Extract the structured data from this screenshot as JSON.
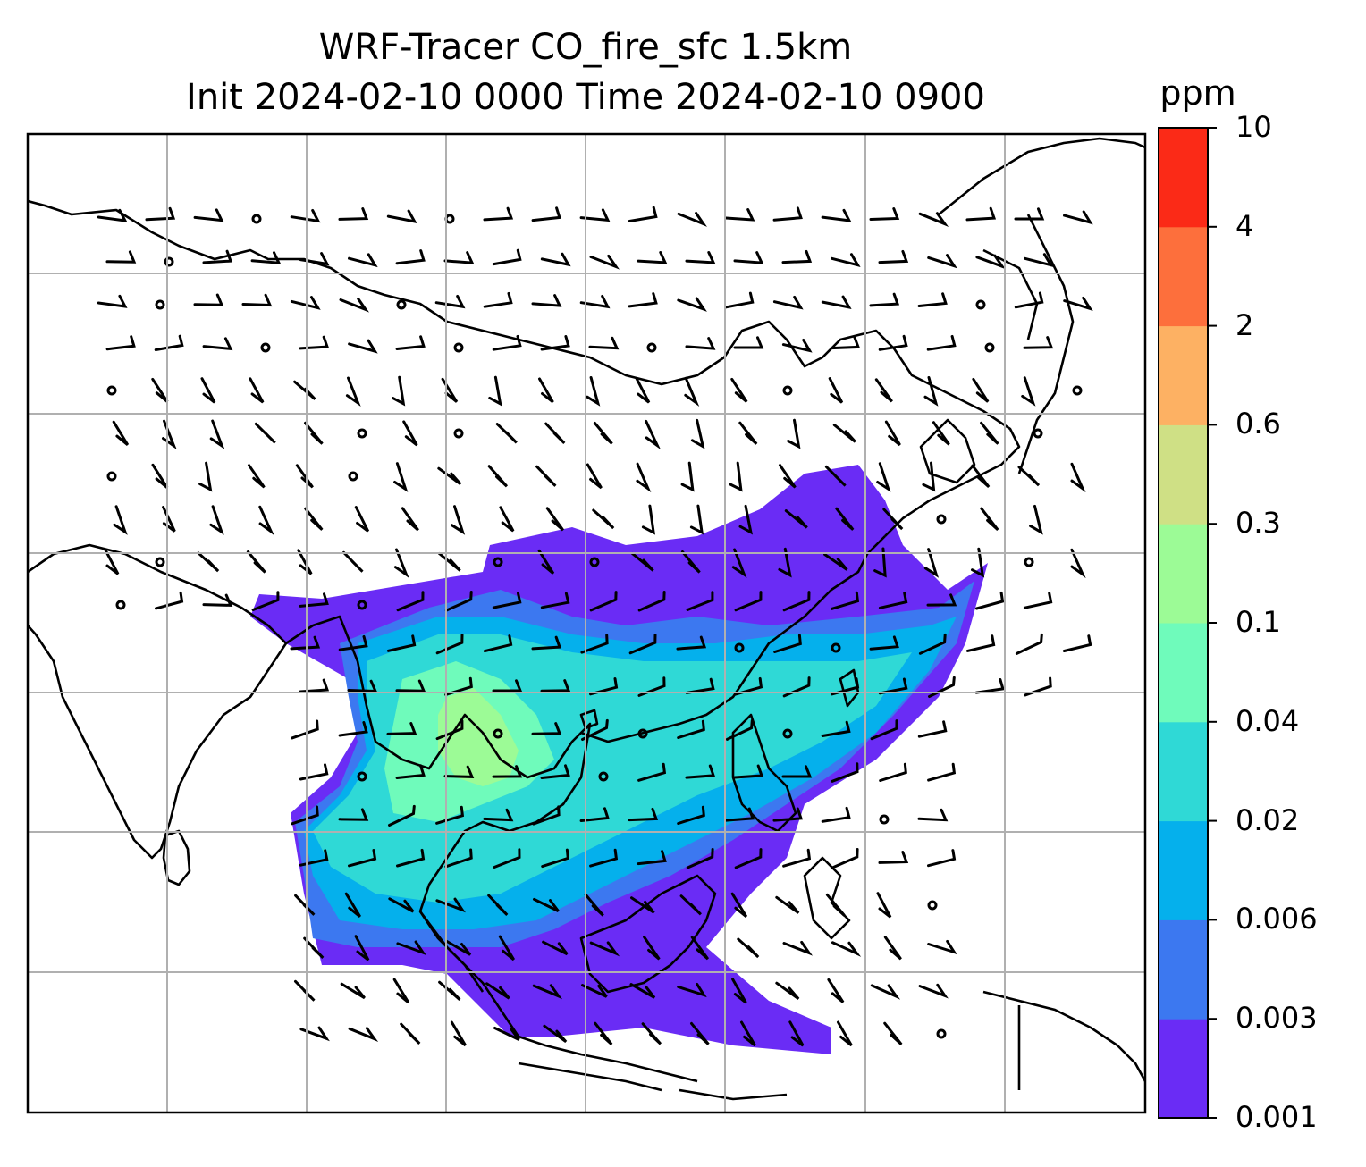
{
  "title_line1": "WRF-Tracer CO_fire_sfc 1.5km",
  "title_line2": "Init 2024-02-10 0000 Time 2024-02-10 0900",
  "chart_data": {
    "type": "heatmap",
    "title": "WRF-Tracer CO_fire_sfc 1.5km",
    "subtitle": "Init 2024-02-10 0000 Time 2024-02-10 0900",
    "grid": true,
    "colorbar": {
      "unit": "ppm",
      "levels": [
        "0.001",
        "0.003",
        "0.006",
        "0.02",
        "0.04",
        "0.1",
        "0.3",
        "0.6",
        "2",
        "4",
        "10"
      ],
      "colors": [
        "#6a2cf5",
        "#3c78f0",
        "#05b0ec",
        "#2fd9d6",
        "#6ffbbb",
        "#9cfb96",
        "#cfe085",
        "#fdb163",
        "#fd6f3c",
        "#fb2a17"
      ]
    },
    "overlay": "wind barbs and coastlines"
  }
}
